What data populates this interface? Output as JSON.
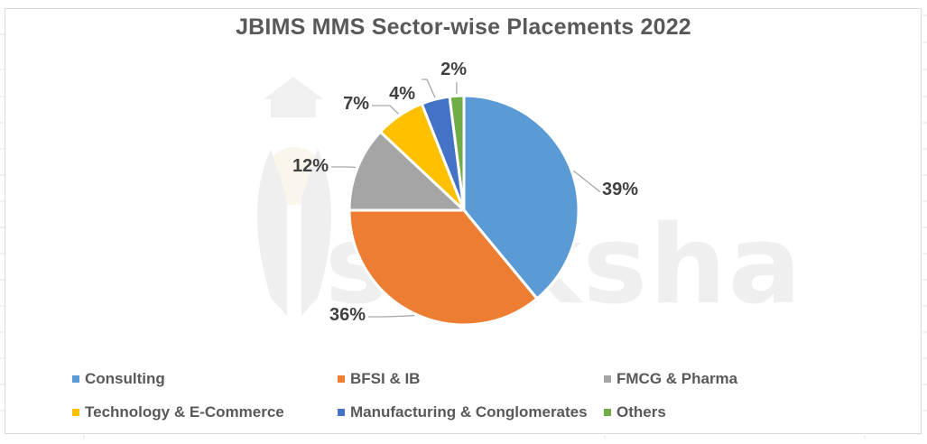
{
  "chart_data": {
    "type": "pie",
    "title": "JBIMS MMS Sector-wise Placements 2022",
    "categories": [
      "Consulting",
      "BFSI & IB",
      "FMCG & Pharma",
      "Technology & E-Commerce",
      "Manufacturing & Conglomerates",
      "Others"
    ],
    "values": [
      39,
      36,
      12,
      7,
      4,
      2
    ],
    "unit": "%",
    "data_labels": [
      "39%",
      "36%",
      "12%",
      "7%",
      "4%",
      "2%"
    ],
    "colors": [
      "#5b9bd5",
      "#ed7d31",
      "#a5a5a5",
      "#ffc000",
      "#4472c4",
      "#70ad47"
    ],
    "start_angle": "12 o'clock",
    "direction": "clockwise",
    "legend_position": "bottom",
    "watermark": "shiksha"
  },
  "legend": {
    "items": [
      {
        "label": "Consulting",
        "color": "#5b9bd5"
      },
      {
        "label": "BFSI & IB",
        "color": "#ed7d31"
      },
      {
        "label": "FMCG & Pharma",
        "color": "#a5a5a5"
      },
      {
        "label": "Technology & E-Commerce",
        "color": "#ffc000"
      },
      {
        "label": "Manufacturing & Conglomerates",
        "color": "#4472c4"
      },
      {
        "label": "Others",
        "color": "#70ad47"
      }
    ]
  }
}
